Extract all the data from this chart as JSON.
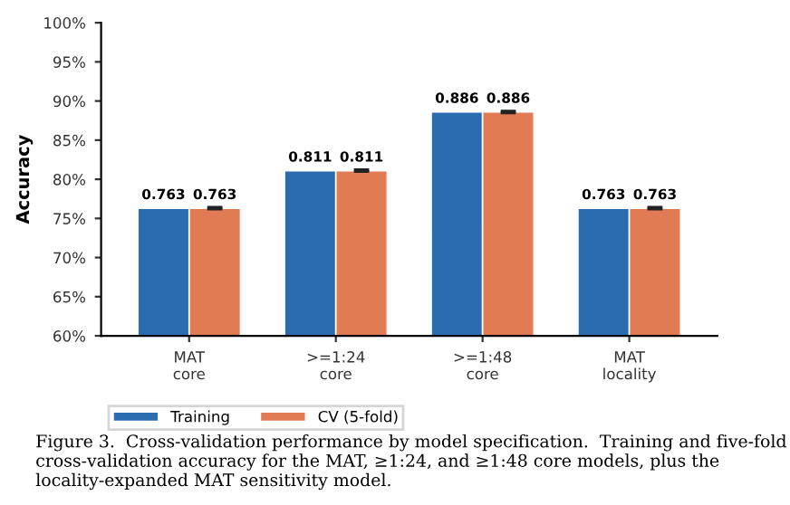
{
  "chart_data": {
    "type": "bar",
    "ylabel": "Accuracy",
    "categories": [
      "MAT\ncore",
      ">=1:24\ncore",
      ">=1:48\ncore",
      "MAT\nlocality"
    ],
    "series": [
      {
        "name": "Training",
        "color": "#2b6cb0",
        "values": [
          0.763,
          0.811,
          0.886,
          0.763
        ]
      },
      {
        "name": "CV (5-fold)",
        "color": "#e07b54",
        "values": [
          0.763,
          0.811,
          0.886,
          0.763
        ],
        "errors": [
          0.001,
          0.001,
          0.001,
          0.001
        ]
      }
    ],
    "ylim": [
      0.6,
      1.0
    ],
    "yticks": [
      {
        "value": 0.6,
        "label": "60%"
      },
      {
        "value": 0.65,
        "label": "65%"
      },
      {
        "value": 0.7,
        "label": "70%"
      },
      {
        "value": 0.75,
        "label": "75%"
      },
      {
        "value": 0.8,
        "label": "80%"
      },
      {
        "value": 0.85,
        "label": "85%"
      },
      {
        "value": 0.9,
        "label": "90%"
      },
      {
        "value": 0.95,
        "label": "95%"
      },
      {
        "value": 1.0,
        "label": "100%"
      }
    ],
    "data_labels": true,
    "legend": "bottom left",
    "annotations": [
      "Figure 3.  Cross-validation performance by model specification.  Training and five-fold cross-validation accuracy for the MAT, ≥1:24, and ≥1:48 core models, plus the locality-expanded MAT sensitivity model."
    ]
  }
}
